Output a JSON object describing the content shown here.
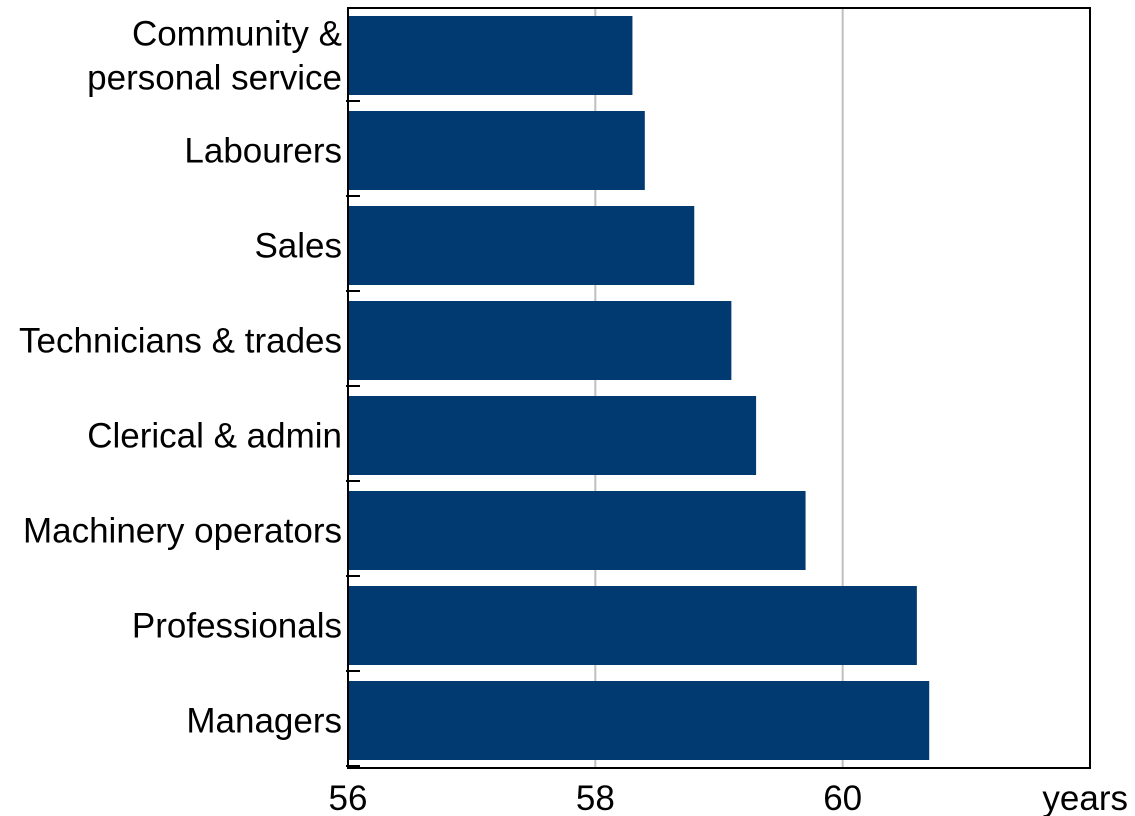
{
  "chart_data": {
    "type": "bar",
    "orientation": "horizontal",
    "categories": [
      "Community & personal service",
      "Labourers",
      "Sales",
      "Technicians & trades",
      "Clerical & admin",
      "Machinery operators",
      "Professionals",
      "Managers"
    ],
    "category_lines": [
      [
        "Community &",
        "personal service"
      ],
      [
        "Labourers"
      ],
      [
        "Sales"
      ],
      [
        "Technicians & trades"
      ],
      [
        "Clerical & admin"
      ],
      [
        "Machinery operators"
      ],
      [
        "Professionals"
      ],
      [
        "Managers"
      ]
    ],
    "values": [
      58.3,
      58.4,
      58.8,
      59.1,
      59.3,
      59.7,
      60.6,
      60.7
    ],
    "xlim": [
      56,
      62
    ],
    "xticks": [
      56,
      58,
      60
    ],
    "x_unit_label": "years",
    "grid": "vertical",
    "bar_color": "#003A70",
    "grid_color": "#BFBFBF"
  }
}
